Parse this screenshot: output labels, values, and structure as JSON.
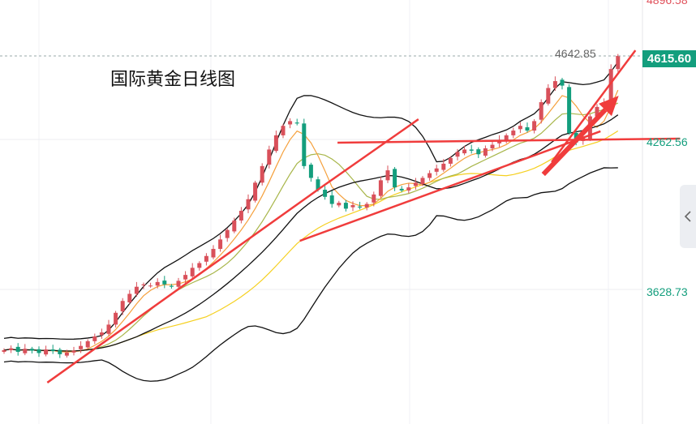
{
  "chart_data": {
    "type": "candlestick",
    "title": "国际黄金日线图",
    "y_ticks": [
      "4896.58",
      "4262.56",
      "3628.73"
    ],
    "y_tick_values": [
      4896.58,
      4262.56,
      3628.73
    ],
    "last_price": 4615.6,
    "last_price_label": "4615.60",
    "high_marker_label": "4642.85",
    "closes": [
      3372,
      3380,
      3365,
      3378,
      3370,
      3360,
      3375,
      3368,
      3355,
      3362,
      3370,
      3390,
      3410,
      3430,
      3447,
      3480,
      3530,
      3580,
      3610,
      3640,
      3650,
      3645,
      3660,
      3650,
      3640,
      3665,
      3690,
      3720,
      3740,
      3770,
      3800,
      3840,
      3880,
      3920,
      3961,
      4010,
      4080,
      4150,
      4220,
      4280,
      4320,
      4340,
      4330,
      4150,
      4100,
      4050,
      4020,
      3990,
      3995,
      3970,
      3985,
      3975,
      3990,
      4030,
      4090,
      4132,
      4060,
      4047,
      4060,
      4080,
      4100,
      4120,
      4140,
      4160,
      4184,
      4210,
      4220,
      4215,
      4200,
      4225,
      4240,
      4260,
      4280,
      4300,
      4320,
      4300,
      4340,
      4420,
      4480,
      4509,
      4490,
      4290,
      4250,
      4270,
      4360,
      4400,
      4420,
      4560,
      4615.6
    ],
    "first_open": 3365,
    "indicators": [
      {
        "name": "BOLL upper/mid/lower",
        "period": 20,
        "color": "#111111"
      },
      {
        "name": "MA5",
        "period": 5,
        "color": "#f5a03c"
      },
      {
        "name": "MA10",
        "period": 10,
        "color": "#a8b64a"
      },
      {
        "name": "MA30",
        "period": 30,
        "color": "#f5d020"
      }
    ],
    "annotations": [
      {
        "type": "trendline",
        "from": [
          6.2,
          3235
        ],
        "to": [
          45.3,
          4057
        ]
      },
      {
        "type": "trendline",
        "from": [
          42.4,
          3834
        ],
        "to": [
          85.5,
          4297
        ]
      },
      {
        "type": "trendline",
        "from": [
          47.8,
          4249
        ],
        "to": [
          96.9,
          4266
        ]
      },
      {
        "type": "trendline",
        "from": [
          45.3,
          4057
        ],
        "to": [
          59.4,
          4348
        ]
      },
      {
        "type": "trendline",
        "from": [
          78.5,
          4167
        ],
        "to": [
          90.5,
          4639
        ]
      },
      {
        "type": "arrow",
        "from": [
          77.3,
          4115
        ],
        "to": [
          88.1,
          4447
        ]
      }
    ],
    "colors": {
      "up": "#d9505a",
      "down": "#139e7d",
      "annotation": "#f03c3c",
      "up_label": "#e0505a",
      "down_label": "#139e7d"
    }
  }
}
